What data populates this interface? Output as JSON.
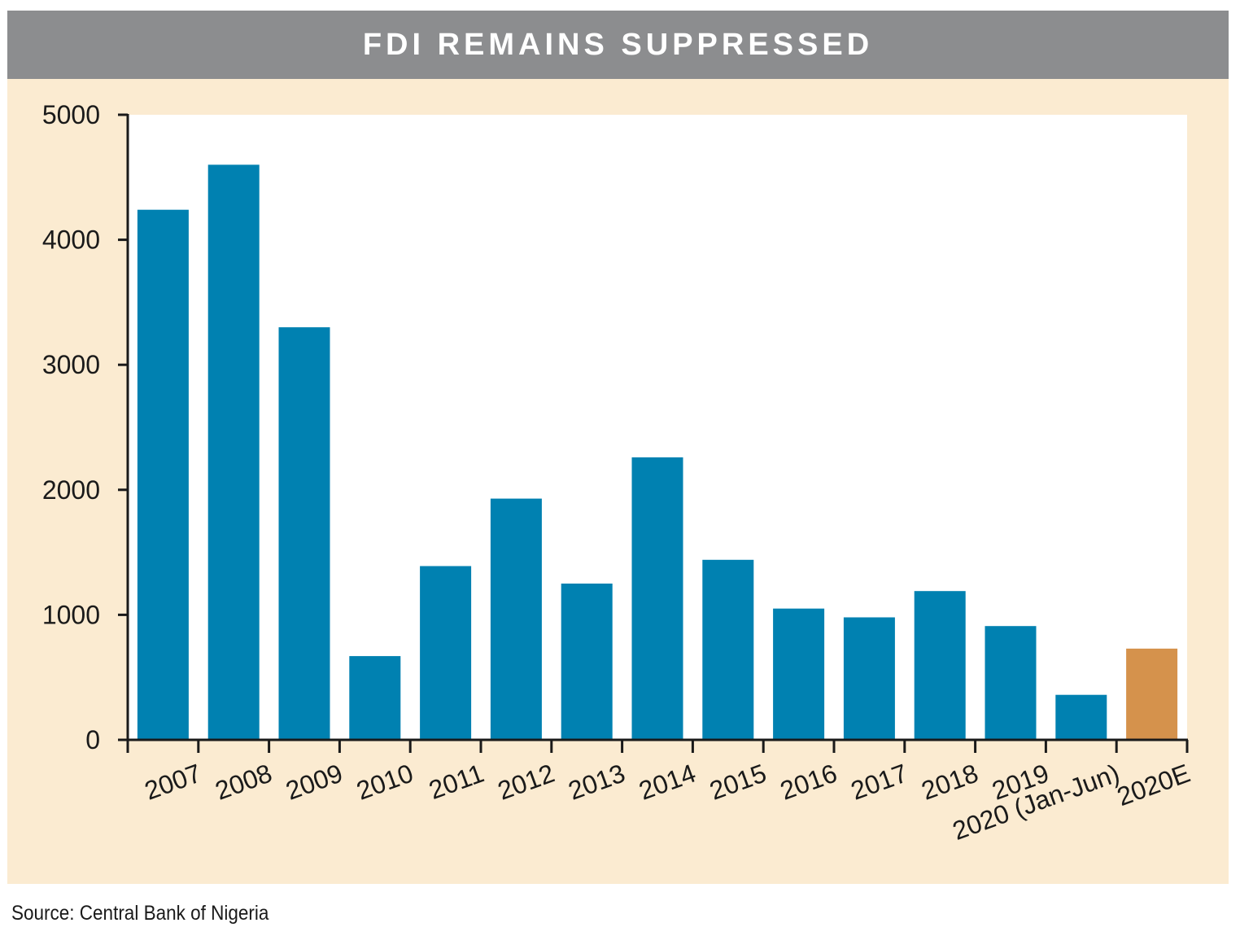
{
  "colors": {
    "panel_background": "#fbebd1",
    "title_bar": "#8c8d8f",
    "title_text": "#ffffff",
    "plot_background": "#ffffff",
    "bar_actual": "#0081b1",
    "bar_estimate": "#d5924c",
    "axis": "#1a1a1a"
  },
  "chart_data": {
    "type": "bar",
    "title": "FDI REMAINS SUPPRESSED",
    "xlabel": "",
    "ylabel": "",
    "categories": [
      "2007",
      "2008",
      "2009",
      "2010",
      "2011",
      "2012",
      "2013",
      "2014",
      "2015",
      "2016",
      "2017",
      "2018",
      "2019",
      "2020 (Jan-Jun)",
      "2020E"
    ],
    "values": [
      4240,
      4600,
      3300,
      670,
      1390,
      1930,
      1250,
      2260,
      1440,
      1050,
      980,
      1190,
      910,
      360,
      730
    ],
    "highlighted_categories": [
      "2020E"
    ],
    "ylim": [
      0,
      5000
    ],
    "yticks": [
      "0",
      "1000",
      "2000",
      "3000",
      "4000",
      "5000"
    ],
    "grid": false,
    "legend": "none"
  },
  "source": "Source: Central Bank of Nigeria"
}
